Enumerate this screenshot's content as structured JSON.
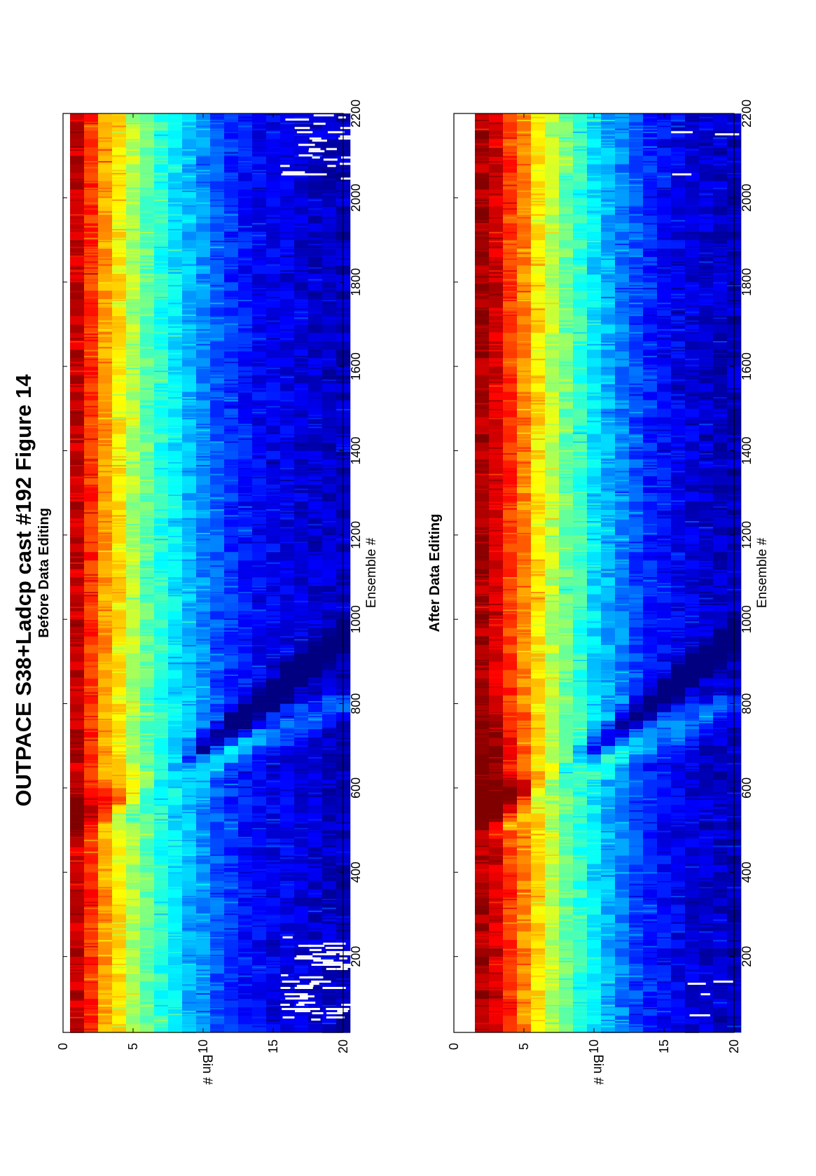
{
  "figure": {
    "title": "OUTPACE S38+Ladcp cast #192  Figure 14",
    "orientation": "rotated 90° counter-clockwise"
  },
  "chart_data": [
    {
      "type": "heatmap",
      "subtitle": "Before Data Editing",
      "xlabel": "Ensemble #",
      "ylabel": "Bin #",
      "xlim": [
        20,
        2200
      ],
      "ylim": [
        0,
        20
      ],
      "x_ticks": [
        200,
        400,
        600,
        800,
        1000,
        1200,
        1400,
        1600,
        1800,
        2000,
        2200
      ],
      "y_ticks": [
        0,
        5,
        10,
        15,
        20
      ],
      "y_reversed": true,
      "colormap": "jet",
      "bins_shown": [
        1,
        20
      ],
      "bin_profile": [
        0.93,
        0.83,
        0.72,
        0.64,
        0.55,
        0.47,
        0.41,
        0.36,
        0.31,
        0.26,
        0.21,
        0.17,
        0.14,
        0.12,
        0.11,
        0.1,
        0.09,
        0.08,
        0.07,
        0.06
      ],
      "anomalies": [
        {
          "description": "descending diagonal band of low intensity",
          "ensemble_range": [
            420,
            960
          ]
        },
        {
          "description": "ascending diagonal high-intensity wedge",
          "ensemble_range": [
            500,
            800
          ]
        },
        {
          "description": "white gaps (missing data) in deep bins",
          "ensemble_range": [
            40,
            250
          ],
          "bins": [
            16,
            20
          ]
        },
        {
          "description": "white gaps (missing data) in deep bins",
          "ensemble_range": [
            2040,
            2200
          ],
          "bins": [
            16,
            20
          ]
        }
      ]
    },
    {
      "type": "heatmap",
      "subtitle": "After Data Editing",
      "xlabel": "Ensemble #",
      "ylabel": "Bin #",
      "xlim": [
        20,
        2200
      ],
      "ylim": [
        0,
        20
      ],
      "x_ticks": [
        200,
        400,
        600,
        800,
        1000,
        1200,
        1400,
        1600,
        1800,
        2000,
        2200
      ],
      "y_ticks": [
        0,
        5,
        10,
        15,
        20
      ],
      "y_reversed": true,
      "colormap": "jet",
      "bins_shown": [
        2,
        20
      ],
      "bin_profile": [
        0.96,
        0.92,
        0.82,
        0.74,
        0.65,
        0.56,
        0.48,
        0.42,
        0.35,
        0.3,
        0.25,
        0.2,
        0.16,
        0.13,
        0.11,
        0.09,
        0.08,
        0.07,
        0.06
      ],
      "anomalies": [
        {
          "description": "descending diagonal band of low intensity",
          "ensemble_range": [
            420,
            960
          ]
        },
        {
          "description": "ascending diagonal high-intensity wedge",
          "ensemble_range": [
            500,
            800
          ]
        },
        {
          "description": "sparse white gaps in deep bins",
          "ensemble_range": [
            40,
            250
          ],
          "bins": [
            16,
            20
          ]
        },
        {
          "description": "sparse white gaps in deep bins",
          "ensemble_range": [
            2060,
            2200
          ],
          "bins": [
            16,
            20
          ]
        }
      ]
    }
  ]
}
